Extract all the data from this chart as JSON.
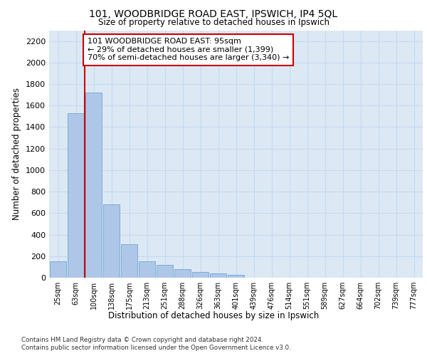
{
  "title1": "101, WOODBRIDGE ROAD EAST, IPSWICH, IP4 5QL",
  "title2": "Size of property relative to detached houses in Ipswich",
  "xlabel": "Distribution of detached houses by size in Ipswich",
  "ylabel": "Number of detached properties",
  "categories": [
    "25sqm",
    "63sqm",
    "100sqm",
    "138sqm",
    "175sqm",
    "213sqm",
    "251sqm",
    "288sqm",
    "326sqm",
    "363sqm",
    "401sqm",
    "439sqm",
    "476sqm",
    "514sqm",
    "551sqm",
    "589sqm",
    "627sqm",
    "664sqm",
    "702sqm",
    "739sqm",
    "777sqm"
  ],
  "values": [
    155,
    1530,
    1720,
    680,
    310,
    155,
    120,
    80,
    55,
    40,
    25,
    0,
    0,
    0,
    0,
    0,
    0,
    0,
    0,
    0,
    0
  ],
  "bar_color": "#aec6e8",
  "bar_edge_color": "#7aaed4",
  "vline_color": "#cc0000",
  "annotation_text": "101 WOODBRIDGE ROAD EAST: 95sqm\n← 29% of detached houses are smaller (1,399)\n70% of semi-detached houses are larger (3,340) →",
  "annotation_box_color": "#ffffff",
  "annotation_box_edgecolor": "#cc0000",
  "annotation_fontsize": 8,
  "ylim": [
    0,
    2300
  ],
  "yticks": [
    0,
    200,
    400,
    600,
    800,
    1000,
    1200,
    1400,
    1600,
    1800,
    2000,
    2200
  ],
  "grid_color": "#c5d8ef",
  "footer1": "Contains HM Land Registry data © Crown copyright and database right 2024.",
  "footer2": "Contains public sector information licensed under the Open Government Licence v3.0."
}
